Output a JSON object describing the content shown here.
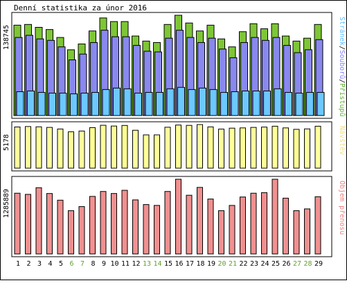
{
  "chart_data": [
    {
      "type": "bar",
      "panel": "top",
      "title": "Denní statistika za únor 2016",
      "ytick_label": "138745",
      "ylim": [
        0,
        138745
      ],
      "legend": [
        {
          "text": "Stránek",
          "color": "#60c0ff"
        },
        {
          "text": "/",
          "color": "#000000"
        },
        {
          "text": "Souborů",
          "color": "#8080ff"
        },
        {
          "text": "/",
          "color": "#000000"
        },
        {
          "text": "Přístupů",
          "color": "#60b030"
        }
      ],
      "legend_placement": "right",
      "categories": [
        "1",
        "2",
        "3",
        "4",
        "5",
        "6",
        "7",
        "8",
        "9",
        "10",
        "11",
        "12",
        "13",
        "14",
        "15",
        "16",
        "17",
        "18",
        "19",
        "20",
        "21",
        "22",
        "23",
        "24",
        "25",
        "26",
        "27",
        "28",
        "29"
      ],
      "series": [
        {
          "name": "Přístupů",
          "color": "#7ec636",
          "values": [
            125000,
            126000,
            122000,
            119000,
            108000,
            91000,
            99000,
            117000,
            135000,
            130000,
            130000,
            110000,
            103000,
            101000,
            126000,
            138745,
            128000,
            117000,
            125000,
            106000,
            95000,
            116000,
            127000,
            120000,
            127000,
            110000,
            103000,
            107000,
            126000
          ]
        },
        {
          "name": "Souborů",
          "color": "#8888ee",
          "values": [
            108000,
            111000,
            106000,
            104000,
            95000,
            77000,
            85000,
            101000,
            118000,
            109000,
            109000,
            97000,
            89000,
            88000,
            107000,
            118000,
            108000,
            101000,
            107000,
            92000,
            80000,
            101000,
            108000,
            104000,
            108000,
            97000,
            87000,
            91000,
            105000
          ]
        },
        {
          "name": "Stránek",
          "color": "#6cc8ff",
          "values": [
            33000,
            34000,
            32000,
            31000,
            31000,
            30000,
            31000,
            32000,
            36000,
            38000,
            37000,
            31000,
            32000,
            32000,
            37000,
            39000,
            36000,
            38000,
            36000,
            32000,
            33000,
            34000,
            34000,
            34000,
            37000,
            32000,
            31000,
            32000,
            32000
          ]
        }
      ]
    },
    {
      "type": "bar",
      "panel": "middle",
      "ytick_label": "5178",
      "ylim": [
        0,
        5178
      ],
      "legend": [
        {
          "text": "Návštěv",
          "color": "#f0e080"
        }
      ],
      "legend_placement": "right",
      "series": [
        {
          "name": "Návštěv",
          "color": "#ffff99",
          "values": [
            4890,
            4940,
            4910,
            4840,
            4650,
            4320,
            4410,
            4810,
            5090,
            5000,
            5070,
            4500,
            3950,
            3950,
            4860,
            5120,
            5080,
            5178,
            4900,
            4640,
            4750,
            4780,
            4840,
            4880,
            4980,
            4780,
            4610,
            4660,
            4980
          ]
        }
      ]
    },
    {
      "type": "bar",
      "panel": "bottom",
      "ytick_label": "1285889",
      "ylim": [
        0,
        1285889
      ],
      "legend": [
        {
          "text": "Objem přenosu",
          "color": "#f08080"
        }
      ],
      "legend_placement": "right",
      "series": [
        {
          "name": "Objem přenosu",
          "color": "#f09090",
          "values": [
            1045000,
            1025000,
            1140000,
            1040000,
            925000,
            745000,
            815000,
            990000,
            1075000,
            1040000,
            1095000,
            930000,
            850000,
            835000,
            1075000,
            1285889,
            1010000,
            1145000,
            945000,
            745000,
            835000,
            980000,
            1045000,
            1055000,
            1285889,
            960000,
            745000,
            775000,
            985000
          ]
        }
      ]
    }
  ],
  "x_axis": {
    "labels": [
      "1",
      "2",
      "3",
      "4",
      "5",
      "6",
      "7",
      "8",
      "9",
      "10",
      "11",
      "12",
      "13",
      "14",
      "15",
      "16",
      "17",
      "18",
      "19",
      "20",
      "21",
      "22",
      "23",
      "24",
      "25",
      "26",
      "27",
      "28",
      "29"
    ],
    "weekend": [
      false,
      false,
      false,
      false,
      false,
      true,
      true,
      false,
      false,
      false,
      false,
      false,
      true,
      true,
      false,
      false,
      false,
      false,
      false,
      true,
      true,
      false,
      false,
      false,
      false,
      false,
      true,
      true,
      false
    ],
    "weekday_color": "#000000",
    "weekend_color": "#60a030"
  }
}
